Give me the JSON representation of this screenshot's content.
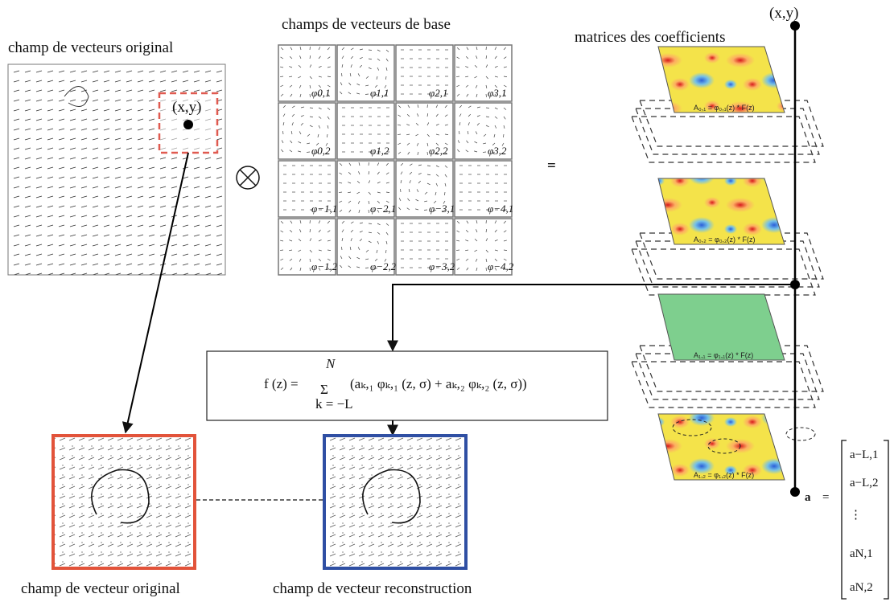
{
  "labels": {
    "original_field": "champ de vecteurs original",
    "basis_fields": "champs de vecteurs de base",
    "coeff_matrices": "matrices des coefficients",
    "point": "(x,y)",
    "point_top": "(x,y)",
    "otimes": "⊗",
    "equals": "=",
    "bottom_left": "champ de vecteur original",
    "bottom_right": "champ de vecteur reconstruction"
  },
  "basis": [
    [
      "φ0,1",
      "φ1,1",
      "φ2,1",
      "φ3,1"
    ],
    [
      "φ0,2",
      "φ1,2",
      "φ2,2",
      "φ3,2"
    ],
    [
      "φ−1,1",
      "φ−2,1",
      "φ−3,1",
      "φ−4,1"
    ],
    [
      "φ−1,2",
      "φ−2,2",
      "φ−3,2",
      "φ−4,2"
    ]
  ],
  "layer_labels": [
    "A₀,₁ = φ₀,₁(z) * F(z)",
    "A₀,₂ = φ₀,₂(z) * F(z)",
    "A₁,₁ = φ₁,₁(z) * F(z)",
    "A₁,₂ = φ₁,₂(z) * F(z)"
  ],
  "formula": {
    "lhs": "f (z) =",
    "sum": "Σ",
    "upper": "N",
    "lower": "k = −L",
    "body": "(aₖ,₁ φₖ,₁ (z, σ) + aₖ,₂ φₖ,₂ (z, σ))"
  },
  "vector": {
    "name": "a",
    "eq": "=",
    "entries": [
      "a−L,1",
      "a−L,2",
      "⋮",
      "aN,1",
      "aN,2"
    ]
  },
  "colors": {
    "orange_frame": "#e2533a",
    "blue_frame": "#2f4fa3",
    "dashed_box": "#e05a50",
    "green_layer": "#7ecf8e"
  }
}
